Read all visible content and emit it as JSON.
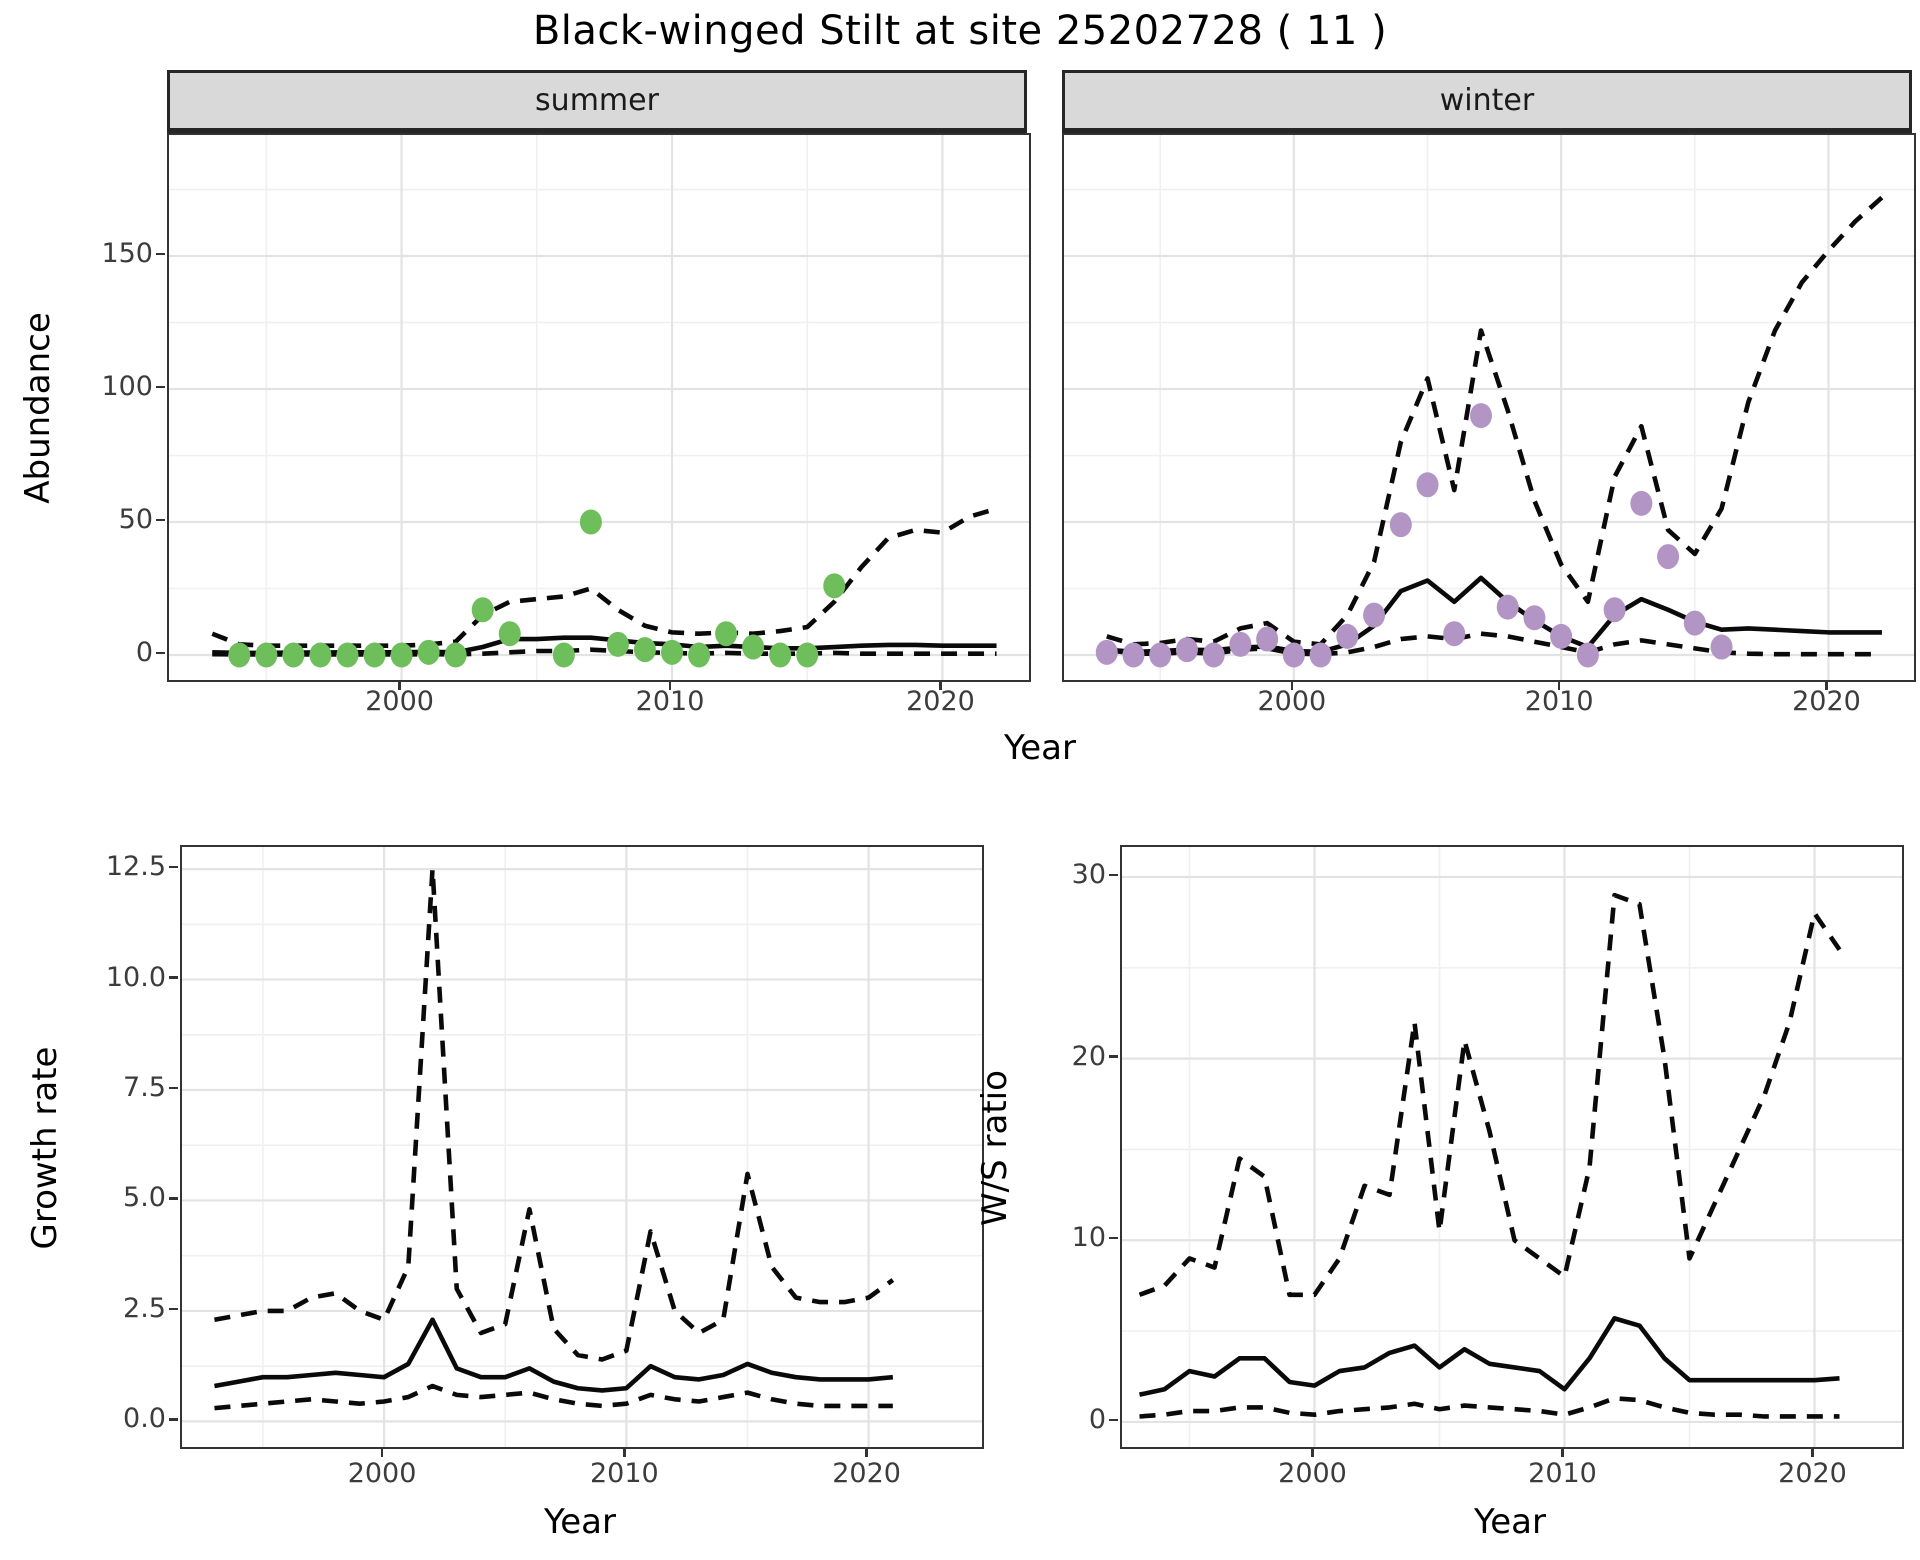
{
  "title": "Black-winged Stilt at site 25202728 ( 11 )",
  "colors": {
    "summer_point": "#6FBE5C",
    "winter_point": "#B295C4",
    "line": "#0a0a0a",
    "grid_major": "#e3e3e3",
    "grid_minor": "#f0f0f0",
    "strip_fill": "#d9d9d9",
    "panel_border": "#333333",
    "tick_text": "#3c3c3c"
  },
  "chart_data": [
    {
      "id": "abundance-summer",
      "type": "line",
      "facet": "summer",
      "ylabel": "Abundance",
      "xlabel": "Year",
      "xticks": [
        2000,
        2010,
        2020
      ],
      "xticks_minor": [
        1995,
        2005,
        2015
      ],
      "yticks": [
        0,
        50,
        100,
        150
      ],
      "yticks_minor": [
        25,
        75,
        125,
        175
      ],
      "xlim": [
        1991.4,
        2023.2
      ],
      "ylim": [
        -9.4,
        195.5
      ],
      "legend": "none",
      "grid": true,
      "years": [
        1993,
        1994,
        1995,
        1996,
        1997,
        1998,
        1999,
        2000,
        2001,
        2002,
        2003,
        2004,
        2005,
        2006,
        2007,
        2008,
        2009,
        2010,
        2011,
        2012,
        2013,
        2014,
        2015,
        2016,
        2017,
        2018,
        2019,
        2020,
        2021,
        2022
      ],
      "series": [
        {
          "name": "mean",
          "style": "solid",
          "values": [
            1.0,
            0.8,
            0.8,
            0.9,
            0.9,
            1.0,
            1.0,
            1.0,
            1.2,
            1.0,
            3.0,
            6.0,
            6.0,
            6.5,
            6.5,
            5.5,
            4.5,
            4.0,
            3.0,
            3.5,
            3.0,
            2.5,
            2.5,
            3.0,
            3.5,
            3.8,
            3.8,
            3.5,
            3.5,
            3.5
          ]
        },
        {
          "name": "upper-ci",
          "style": "dashed",
          "values": [
            8,
            4,
            3.5,
            3.5,
            3.5,
            3.5,
            3.5,
            3.5,
            4,
            5,
            15,
            20,
            21,
            22,
            25,
            17,
            11,
            8.5,
            8,
            8.5,
            8,
            9,
            10.5,
            20,
            33,
            44,
            47,
            46,
            52,
            55
          ]
        },
        {
          "name": "lower-ci",
          "style": "dashed",
          "values": [
            0.3,
            0.2,
            0.2,
            0.2,
            0.2,
            0.2,
            0.2,
            0.2,
            0.3,
            0.2,
            0.5,
            1,
            1.5,
            1.5,
            2,
            1.5,
            1,
            0.8,
            0.5,
            0.8,
            0.5,
            0.5,
            0.5,
            0.8,
            0.5,
            0.5,
            0.5,
            0.5,
            0.5,
            0.5
          ]
        }
      ],
      "points": {
        "name": "observed-count-summer",
        "color": "#6FBE5C",
        "years": [
          1994,
          1995,
          1996,
          1997,
          1998,
          1999,
          2000,
          2001,
          2002,
          2003,
          2004,
          2006,
          2007,
          2008,
          2009,
          2010,
          2011,
          2012,
          2013,
          2014,
          2015,
          2016
        ],
        "values": [
          0,
          0,
          0,
          0,
          0,
          0,
          0,
          1,
          0,
          17,
          8,
          0,
          50,
          4,
          2,
          1,
          0,
          8,
          3,
          0,
          0,
          26
        ]
      }
    },
    {
      "id": "abundance-winter",
      "type": "line",
      "facet": "winter",
      "ylabel": "Abundance",
      "xlabel": "Year",
      "xticks": [
        2000,
        2010,
        2020
      ],
      "xticks_minor": [
        1995,
        2005,
        2015
      ],
      "yticks": [
        0,
        50,
        100,
        150
      ],
      "yticks_minor": [
        25,
        75,
        125,
        175
      ],
      "xlim": [
        1991.4,
        2023.2
      ],
      "ylim": [
        -9.4,
        195.5
      ],
      "legend": "none",
      "grid": true,
      "years": [
        1993,
        1994,
        1995,
        1996,
        1997,
        1998,
        1999,
        2000,
        2001,
        2002,
        2003,
        2004,
        2005,
        2006,
        2007,
        2008,
        2009,
        2010,
        2011,
        2012,
        2013,
        2014,
        2015,
        2016,
        2017,
        2018,
        2019,
        2020,
        2021,
        2022
      ],
      "series": [
        {
          "name": "mean",
          "style": "solid",
          "values": [
            2,
            1.2,
            1.5,
            2,
            1.8,
            2.8,
            3.2,
            1.5,
            1.2,
            4,
            11,
            24,
            28,
            20,
            29,
            20,
            13,
            7,
            3,
            15,
            21,
            17,
            12.5,
            9.5,
            10,
            9.5,
            9,
            8.5,
            8.5,
            8.5
          ]
        },
        {
          "name": "upper-ci",
          "style": "dashed",
          "values": [
            7,
            4,
            4.5,
            6,
            5,
            10,
            12,
            5,
            4,
            15,
            35,
            80,
            104,
            62,
            122,
            92,
            58,
            34,
            20,
            67,
            86,
            47,
            38,
            55,
            95,
            122,
            140,
            152,
            163,
            172
          ]
        },
        {
          "name": "lower-ci",
          "style": "dashed",
          "values": [
            2,
            0.5,
            0.5,
            1,
            0.5,
            2,
            2.5,
            0.5,
            0.3,
            1,
            3,
            6,
            7,
            6,
            8,
            7,
            5,
            3,
            1,
            4,
            5.5,
            4,
            2.5,
            1,
            0.5,
            0.3,
            0.3,
            0.3,
            0.3,
            0.3
          ]
        }
      ],
      "points": {
        "name": "observed-count-winter",
        "color": "#B295C4",
        "years": [
          1993,
          1994,
          1995,
          1996,
          1997,
          1998,
          1999,
          2000,
          2001,
          2002,
          2003,
          2004,
          2005,
          2006,
          2007,
          2008,
          2009,
          2010,
          2011,
          2012,
          2013,
          2014,
          2015,
          2016
        ],
        "values": [
          1,
          0,
          0,
          2,
          0,
          4,
          6,
          0,
          0,
          7,
          15,
          49,
          64,
          8,
          90,
          18,
          14,
          7,
          0,
          17,
          57,
          37,
          12,
          3
        ]
      }
    },
    {
      "id": "growth-rate",
      "type": "line",
      "facet": null,
      "ylabel": "Growth rate",
      "xlabel": "Year",
      "xticks": [
        2000,
        2010,
        2020
      ],
      "xticks_minor": [
        1995,
        2005,
        2015
      ],
      "yticks": [
        0.0,
        2.5,
        5.0,
        7.5,
        10.0,
        12.5
      ],
      "yticks_minor": [
        1.25,
        3.75,
        6.25,
        8.75,
        11.25
      ],
      "ytick_decimals": 1,
      "xlim": [
        1991.66,
        2024.68
      ],
      "ylim": [
        -0.58,
        13.0
      ],
      "legend": "none",
      "grid": true,
      "years": [
        1993,
        1994,
        1995,
        1996,
        1997,
        1998,
        1999,
        2000,
        2001,
        2002,
        2003,
        2004,
        2005,
        2006,
        2007,
        2008,
        2009,
        2010,
        2011,
        2012,
        2013,
        2014,
        2015,
        2016,
        2017,
        2018,
        2019,
        2020,
        2021
      ],
      "series": [
        {
          "name": "mean",
          "style": "solid",
          "values": [
            0.8,
            0.9,
            1.0,
            1.0,
            1.05,
            1.1,
            1.05,
            1.0,
            1.3,
            2.3,
            1.2,
            1.0,
            1.0,
            1.2,
            0.9,
            0.75,
            0.7,
            0.75,
            1.25,
            1.0,
            0.95,
            1.05,
            1.3,
            1.1,
            1.0,
            0.95,
            0.95,
            0.95,
            1.0
          ]
        },
        {
          "name": "upper-ci",
          "style": "dashed",
          "values": [
            2.3,
            2.4,
            2.5,
            2.5,
            2.8,
            2.9,
            2.5,
            2.3,
            3.5,
            12.5,
            3.0,
            2.0,
            2.2,
            4.8,
            2.1,
            1.5,
            1.4,
            1.6,
            4.3,
            2.5,
            2.0,
            2.3,
            5.6,
            3.5,
            2.8,
            2.7,
            2.7,
            2.8,
            3.2
          ]
        },
        {
          "name": "lower-ci",
          "style": "dashed",
          "values": [
            0.3,
            0.35,
            0.4,
            0.45,
            0.5,
            0.45,
            0.4,
            0.45,
            0.55,
            0.8,
            0.6,
            0.55,
            0.6,
            0.65,
            0.5,
            0.4,
            0.35,
            0.4,
            0.6,
            0.5,
            0.45,
            0.55,
            0.65,
            0.5,
            0.4,
            0.35,
            0.35,
            0.35,
            0.35
          ]
        }
      ],
      "points": null
    },
    {
      "id": "ws-ratio",
      "type": "line",
      "facet": null,
      "ylabel": "W/S ratio",
      "xlabel": "Year",
      "xticks": [
        2000,
        2010,
        2020
      ],
      "xticks_minor": [
        1995,
        2005,
        2015
      ],
      "yticks": [
        0,
        10,
        20,
        30
      ],
      "yticks_minor": [
        5,
        15,
        25
      ],
      "xlim": [
        1992.3,
        2023.5
      ],
      "ylim": [
        -1.38,
        31.65
      ],
      "legend": "none",
      "grid": true,
      "years": [
        1993,
        1994,
        1995,
        1996,
        1997,
        1998,
        1999,
        2000,
        2001,
        2002,
        2003,
        2004,
        2005,
        2006,
        2007,
        2008,
        2009,
        2010,
        2011,
        2012,
        2013,
        2014,
        2015,
        2016,
        2017,
        2018,
        2019,
        2020,
        2021
      ],
      "series": [
        {
          "name": "mean",
          "style": "solid",
          "values": [
            1.5,
            1.8,
            2.8,
            2.5,
            3.5,
            3.5,
            2.2,
            2.0,
            2.8,
            3.0,
            3.8,
            4.2,
            3.0,
            4.0,
            3.2,
            3.0,
            2.8,
            1.8,
            3.5,
            5.7,
            5.3,
            3.5,
            2.3,
            2.3,
            2.3,
            2.3,
            2.3,
            2.3,
            2.4
          ]
        },
        {
          "name": "upper-ci",
          "style": "dashed",
          "values": [
            7,
            7.5,
            9,
            8.5,
            14.5,
            13.5,
            7,
            7,
            9,
            13,
            12.5,
            22,
            10.5,
            21,
            16,
            10,
            9,
            8,
            14,
            29,
            28.5,
            20,
            9,
            12,
            15,
            18,
            22,
            28,
            26
          ]
        },
        {
          "name": "lower-ci",
          "style": "dashed",
          "values": [
            0.3,
            0.4,
            0.6,
            0.6,
            0.8,
            0.8,
            0.5,
            0.4,
            0.6,
            0.7,
            0.8,
            1.0,
            0.7,
            0.9,
            0.8,
            0.7,
            0.6,
            0.4,
            0.8,
            1.3,
            1.2,
            0.8,
            0.5,
            0.4,
            0.4,
            0.3,
            0.3,
            0.3,
            0.3
          ]
        }
      ],
      "points": null
    }
  ]
}
